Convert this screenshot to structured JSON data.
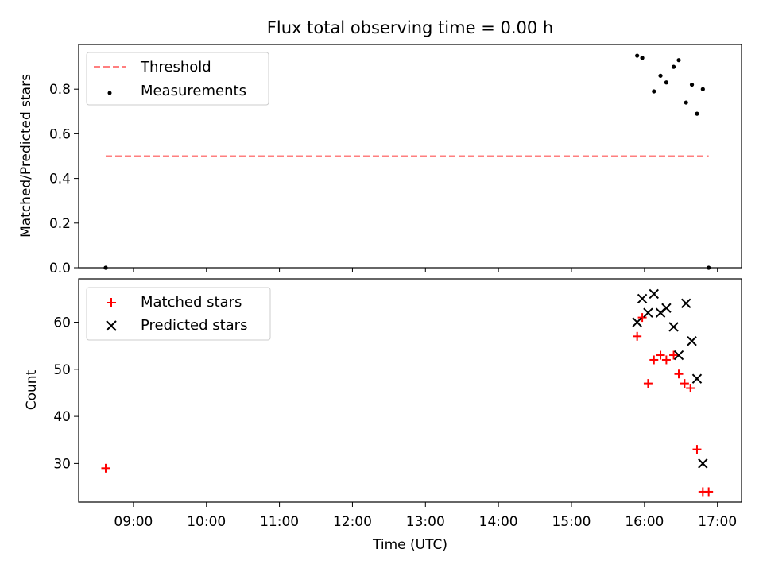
{
  "chart_data": [
    {
      "type": "scatter",
      "title": "Flux total observing time = 0.00 h",
      "ylabel": "Matched/Predicted stars",
      "xlabel": "",
      "ylim": [
        0.0,
        1.0
      ],
      "yticks": [
        "0.0",
        "0.2",
        "0.4",
        "0.6",
        "0.8"
      ],
      "ytick_values": [
        0.0,
        0.2,
        0.4,
        0.6,
        0.8
      ],
      "legend_position": "top-left",
      "series": [
        {
          "name": "Threshold",
          "kind": "dashed-line",
          "color": "#ff7f7f",
          "x": [
            8.62,
            16.88
          ],
          "y": [
            0.5,
            0.5
          ]
        },
        {
          "name": "Measurements",
          "kind": "dots",
          "color": "#000000",
          "x": [
            8.62,
            15.9,
            15.97,
            16.13,
            16.22,
            16.3,
            16.4,
            16.47,
            16.57,
            16.65,
            16.72,
            16.8,
            16.88
          ],
          "y": [
            0.0,
            0.95,
            0.94,
            0.79,
            0.86,
            0.83,
            0.9,
            0.93,
            0.74,
            0.82,
            0.69,
            0.8,
            0.0
          ]
        }
      ]
    },
    {
      "type": "scatter",
      "xlabel": "Time (UTC)",
      "ylabel": "Count",
      "ylim": [
        21.8,
        69.2
      ],
      "yticks": [
        "30",
        "40",
        "50",
        "60"
      ],
      "ytick_values": [
        30,
        40,
        50,
        60
      ],
      "xlim": [
        8.25,
        17.33
      ],
      "xticks": [
        "09:00",
        "10:00",
        "11:00",
        "12:00",
        "13:00",
        "14:00",
        "15:00",
        "16:00",
        "17:00"
      ],
      "xtick_values": [
        9,
        10,
        11,
        12,
        13,
        14,
        15,
        16,
        17
      ],
      "legend_position": "top-left",
      "series": [
        {
          "name": "Matched stars",
          "kind": "plus",
          "color": "#ff0000",
          "x": [
            8.62,
            15.9,
            15.97,
            16.05,
            16.13,
            16.22,
            16.3,
            16.4,
            16.47,
            16.55,
            16.63,
            16.72,
            16.8,
            16.88
          ],
          "y": [
            29,
            57,
            61,
            47,
            52,
            53,
            52,
            53,
            49,
            47,
            46,
            33,
            24,
            24
          ]
        },
        {
          "name": "Predicted stars",
          "kind": "x",
          "color": "#000000",
          "x": [
            15.9,
            15.97,
            16.05,
            16.13,
            16.22,
            16.3,
            16.4,
            16.47,
            16.57,
            16.65,
            16.72,
            16.8
          ],
          "y": [
            60,
            65,
            62,
            66,
            62,
            63,
            59,
            53,
            64,
            56,
            48,
            30
          ]
        }
      ]
    }
  ]
}
